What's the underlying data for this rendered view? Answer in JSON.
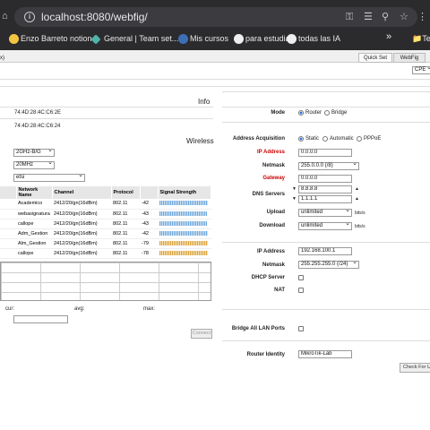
{
  "browser": {
    "url": "localhost:8080/webfig/",
    "bookmarks": [
      "Enzo Barreto notion",
      "General | Team set...",
      "Mis cursos",
      "para estudiar",
      "todas las IA"
    ],
    "more": "»",
    "right_bookmark": "Te"
  },
  "page": {
    "left_top_text": "x)",
    "tabs": [
      "Quick Set",
      "WebFig"
    ],
    "mode_select": "CPE"
  },
  "info": {
    "title": "Info",
    "mac1": "74:4D:28:4C:C6:2E",
    "mac2": "74:4D:28:4C:C6:24"
  },
  "wireless": {
    "title": "Wireless",
    "band": "2GHz-B/G",
    "width": "20MHz",
    "country": "etsi",
    "columns": [
      "Network Name",
      "Channel",
      "Protocol",
      "",
      "Signal Strength"
    ],
    "rows": [
      {
        "name": "Academico",
        "channel": "2412/20/gn(16dBm)",
        "protocol": "802.11",
        "signal": "-42",
        "strength": 0.75
      },
      {
        "name": "webasignatura",
        "channel": "2412/20/gn(16dBm)",
        "protocol": "802.11",
        "signal": "-43",
        "strength": 0.74
      },
      {
        "name": "callope",
        "channel": "2412/20/gn(16dBm)",
        "protocol": "802.11",
        "signal": "-43",
        "strength": 0.74
      },
      {
        "name": "Adm_Gestion",
        "channel": "2412/20/gn(16dBm)",
        "protocol": "802.11",
        "signal": "-42",
        "strength": 0.75
      },
      {
        "name": "Alm_Gestion",
        "channel": "2412/20/gn(16dBm)",
        "protocol": "802.11",
        "signal": "-79",
        "strength": 0.75,
        "weak": true
      },
      {
        "name": "callope",
        "channel": "2412/20/gn(16dBm)",
        "protocol": "802.11",
        "signal": "-78",
        "strength": 0.75,
        "weak": true
      }
    ],
    "stats": {
      "cur": "cur:",
      "avg": "avg:",
      "max": "max:"
    },
    "connect_label": "Connect"
  },
  "config": {
    "mode_label": "Mode",
    "mode_options": [
      "Router",
      "Bridge"
    ],
    "addr_acq_label": "Address Acquisition",
    "addr_acq_options": [
      "Static",
      "Automatic",
      "PPPoE"
    ],
    "ip_label": "IP Address",
    "ip_value": "0.0.0.0",
    "netmask_label": "Netmask",
    "netmask_value": "255.0.0.0 (/8)",
    "gateway_label": "Gateway",
    "gateway_value": "0.0.0.0",
    "dns_label": "DNS Servers",
    "dns1": "8.8.8.8",
    "dns2": "1.1.1.1",
    "upload_label": "Upload",
    "upload_value": "unlimited",
    "download_label": "Download",
    "download_value": "unlimited",
    "unit": "bits/s",
    "lan_ip_label": "IP Address",
    "lan_ip_value": "192.168.100.1",
    "lan_netmask_label": "Netmask",
    "lan_netmask_value": "255.255.255.0 (/24)",
    "dhcp_label": "DHCP Server",
    "nat_label": "NAT",
    "bridge_lan_label": "Bridge All LAN Ports",
    "identity_label": "Router Identity",
    "identity_value": "MikroTik-Lab",
    "check_updates_label": "Check For Up"
  }
}
